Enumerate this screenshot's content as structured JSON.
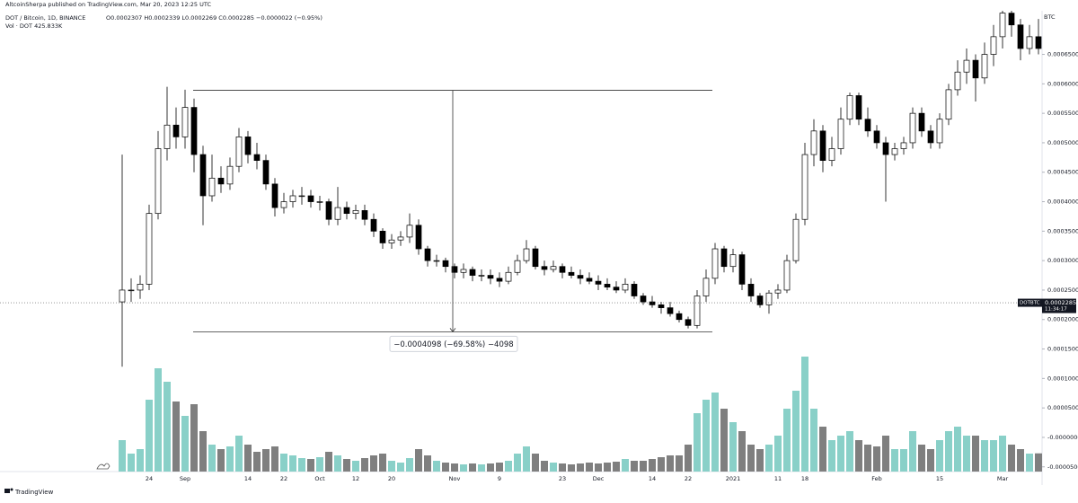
{
  "header": {
    "published": "AltcoinSherpa published on TradingView.com, Mar 20, 2023 12:25 UTC",
    "symbol": "DOT / Bitcoin, 1D, BINANCE",
    "ohlc": "O0.0002307 H0.0002339 L0.0002269 C0.0002285 −0.0000022 (−0.95%)",
    "volume": "Vol · DOT  425.833K"
  },
  "chart_data": {
    "type": "candlestick",
    "currency": "BTC",
    "categories": [
      null,
      null,
      null,
      "24",
      null,
      null,
      null,
      "Sep",
      null,
      null,
      null,
      null,
      null,
      null,
      "14",
      null,
      null,
      null,
      "22",
      null,
      null,
      null,
      "Oct",
      null,
      null,
      null,
      "12",
      null,
      null,
      null,
      "20",
      null,
      null,
      null,
      null,
      null,
      null,
      "Nov",
      null,
      null,
      null,
      null,
      "9",
      null,
      null,
      null,
      null,
      null,
      null,
      "23",
      null,
      null,
      null,
      "Dec",
      null,
      null,
      null,
      null,
      null,
      "14",
      null,
      null,
      null,
      "22",
      null,
      null,
      null,
      null,
      "2021",
      null,
      null,
      null,
      null,
      "11",
      null,
      null,
      "18",
      null,
      null,
      null,
      null,
      null,
      null,
      null,
      "Feb",
      null,
      null,
      null,
      null,
      null,
      null,
      "15",
      null,
      null,
      null,
      null,
      null,
      null,
      "Mar",
      null,
      null,
      null,
      null
    ],
    "open": [
      0.00023,
      0.00025,
      0.00025,
      0.00026,
      0.00038,
      0.00049,
      0.00053,
      0.00051,
      0.00056,
      0.00048,
      0.00041,
      0.00044,
      0.00043,
      0.00046,
      0.00051,
      0.00048,
      0.00047,
      0.00043,
      0.00039,
      0.0004,
      0.00041,
      0.00041,
      0.0004,
      0.0004,
      0.00037,
      0.00039,
      0.00038,
      0.000385,
      0.00037,
      0.00035,
      0.00033,
      0.000335,
      0.00034,
      0.00036,
      0.00032,
      0.0003,
      0.0003,
      0.00029,
      0.00028,
      0.000285,
      0.000275,
      0.000275,
      0.00027,
      0.000265,
      0.00028,
      0.0003,
      0.00032,
      0.00029,
      0.000285,
      0.00029,
      0.00028,
      0.000275,
      0.00027,
      0.000265,
      0.00026,
      0.000255,
      0.00025,
      0.00026,
      0.00024,
      0.00023,
      0.000225,
      0.00022,
      0.00021,
      0.0002,
      0.00019,
      0.00024,
      0.00027,
      0.00032,
      0.00029,
      0.00031,
      0.00026,
      0.00024,
      0.000225,
      0.000245,
      0.00025,
      0.0003,
      0.00037,
      0.00048,
      0.00052,
      0.00047,
      0.00049,
      0.00054,
      0.00058,
      0.00054,
      0.00052,
      0.0005,
      0.00048,
      0.00049,
      0.0005,
      0.00055,
      0.00052,
      0.0005,
      0.00054,
      0.00059,
      0.00062,
      0.00064,
      0.00061,
      0.00065,
      0.00068,
      0.00072,
      0.0007,
      0.00066,
      0.00068
    ],
    "high": [
      0.00048,
      0.00027,
      0.000275,
      0.000395,
      0.00052,
      0.000595,
      0.00056,
      0.00059,
      0.000575,
      0.000495,
      0.00048,
      0.00046,
      0.000475,
      0.000525,
      0.00052,
      0.0005,
      0.00048,
      0.00044,
      0.000415,
      0.00042,
      0.000425,
      0.00042,
      0.00041,
      0.000405,
      0.000425,
      0.0004,
      0.000395,
      0.000395,
      0.00038,
      0.000355,
      0.000345,
      0.00035,
      0.00038,
      0.00037,
      0.000325,
      0.00031,
      0.000305,
      0.000295,
      0.000295,
      0.00029,
      0.000285,
      0.000285,
      0.00028,
      0.00029,
      0.00031,
      0.000335,
      0.000325,
      0.0003,
      0.0003,
      0.000295,
      0.00029,
      0.000285,
      0.00028,
      0.000275,
      0.00027,
      0.000265,
      0.00027,
      0.000265,
      0.000245,
      0.00024,
      0.00023,
      0.00023,
      0.000215,
      0.000205,
      0.00025,
      0.000285,
      0.00033,
      0.000325,
      0.00032,
      0.000315,
      0.00027,
      0.000245,
      0.00025,
      0.00026,
      0.00031,
      0.00038,
      0.0005,
      0.00054,
      0.00053,
      0.00051,
      0.00056,
      0.000585,
      0.000585,
      0.00056,
      0.00053,
      0.00051,
      0.0005,
      0.00051,
      0.00056,
      0.00056,
      0.00053,
      0.00055,
      0.0006,
      0.00064,
      0.00066,
      0.00065,
      0.00067,
      0.0007,
      0.00073,
      0.00073,
      0.00071,
      0.0007,
      0.00071
    ],
    "low": [
      0.00012,
      0.00023,
      0.000235,
      0.00025,
      0.00037,
      0.00047,
      0.00049,
      0.00049,
      0.00045,
      0.00036,
      0.0004,
      0.000415,
      0.00042,
      0.00045,
      0.000465,
      0.000455,
      0.00042,
      0.000375,
      0.00038,
      0.00039,
      0.000395,
      0.00039,
      0.000385,
      0.00036,
      0.00036,
      0.00037,
      0.00037,
      0.00036,
      0.00034,
      0.00032,
      0.00032,
      0.000325,
      0.00033,
      0.00031,
      0.00029,
      0.00029,
      0.00028,
      0.00027,
      0.00027,
      0.000265,
      0.000265,
      0.00026,
      0.000255,
      0.00026,
      0.000275,
      0.000295,
      0.000285,
      0.000275,
      0.00028,
      0.00027,
      0.00027,
      0.00026,
      0.00026,
      0.00025,
      0.00025,
      0.000245,
      0.000245,
      0.000235,
      0.000225,
      0.00022,
      0.00021,
      0.000205,
      0.000195,
      0.000185,
      0.000185,
      0.00023,
      0.00026,
      0.00028,
      0.00028,
      0.00025,
      0.00023,
      0.00022,
      0.00021,
      0.000235,
      0.000245,
      0.000295,
      0.00036,
      0.00046,
      0.00045,
      0.00046,
      0.00048,
      0.00053,
      0.00053,
      0.00051,
      0.00049,
      0.0004,
      0.00047,
      0.00048,
      0.00049,
      0.00051,
      0.00049,
      0.00049,
      0.00053,
      0.00058,
      0.0006,
      0.00057,
      0.0006,
      0.00063,
      0.00066,
      0.00068,
      0.00064,
      0.00065,
      0.00065
    ],
    "close": [
      0.00025,
      0.00025,
      0.00026,
      0.00038,
      0.00049,
      0.00053,
      0.00051,
      0.00056,
      0.00048,
      0.00041,
      0.00044,
      0.00043,
      0.00046,
      0.00051,
      0.00048,
      0.00047,
      0.00043,
      0.00039,
      0.0004,
      0.00041,
      0.00041,
      0.0004,
      0.0004,
      0.00037,
      0.00039,
      0.00038,
      0.000385,
      0.00037,
      0.00035,
      0.00033,
      0.000335,
      0.00034,
      0.00036,
      0.00032,
      0.0003,
      0.0003,
      0.00029,
      0.00028,
      0.000285,
      0.000275,
      0.000275,
      0.00027,
      0.000265,
      0.00028,
      0.0003,
      0.00032,
      0.00029,
      0.000285,
      0.00029,
      0.00028,
      0.000275,
      0.00027,
      0.000265,
      0.00026,
      0.000255,
      0.00025,
      0.00026,
      0.00024,
      0.00023,
      0.000225,
      0.00022,
      0.00021,
      0.0002,
      0.00019,
      0.00024,
      0.00027,
      0.00032,
      0.00029,
      0.00031,
      0.00026,
      0.00024,
      0.000225,
      0.000245,
      0.00025,
      0.0003,
      0.00037,
      0.00048,
      0.00052,
      0.00047,
      0.00049,
      0.00054,
      0.00058,
      0.00054,
      0.00052,
      0.0005,
      0.00048,
      0.00049,
      0.0005,
      0.00055,
      0.00052,
      0.0005,
      0.00054,
      0.00059,
      0.00062,
      0.00064,
      0.00061,
      0.00065,
      0.00068,
      0.00072,
      0.0007,
      0.00066,
      0.00068,
      0.00066
    ],
    "volume": [
      735000,
      420000,
      525000,
      1680000,
      2415000,
      2100000,
      1638000,
      1302000,
      1575000,
      945000,
      630000,
      525000,
      588000,
      840000,
      630000,
      462000,
      525000,
      588000,
      420000,
      378000,
      315000,
      294000,
      336000,
      462000,
      378000,
      294000,
      252000,
      315000,
      378000,
      420000,
      252000,
      210000,
      315000,
      525000,
      378000,
      252000,
      210000,
      189000,
      168000,
      189000,
      168000,
      189000,
      210000,
      252000,
      420000,
      588000,
      420000,
      252000,
      210000,
      189000,
      168000,
      189000,
      210000,
      189000,
      210000,
      231000,
      294000,
      252000,
      252000,
      294000,
      336000,
      378000,
      378000,
      630000,
      1365000,
      1680000,
      1848000,
      1470000,
      1155000,
      945000,
      630000,
      525000,
      630000,
      840000,
      1470000,
      1890000,
      2688000,
      1470000,
      1050000,
      735000,
      840000,
      945000,
      735000,
      630000,
      588000,
      840000,
      525000,
      525000,
      945000,
      630000,
      525000,
      735000,
      945000,
      1050000,
      840000,
      840000,
      735000,
      735000,
      840000,
      630000,
      525000,
      420000,
      425833
    ],
    "ylim": [
      -5.8e-05,
      0.000724
    ],
    "yticks": [
      {
        "value": 0.00065,
        "label": "0.0006500"
      },
      {
        "value": 0.0006,
        "label": "0.0006000"
      },
      {
        "value": 0.00055,
        "label": "0.0005500"
      },
      {
        "value": 0.0005,
        "label": "0.0005000"
      },
      {
        "value": 0.00045,
        "label": "0.0004500"
      },
      {
        "value": 0.0004,
        "label": "0.0004000"
      },
      {
        "value": 0.00035,
        "label": "0.0003500"
      },
      {
        "value": 0.0003,
        "label": "0.0003000"
      },
      {
        "value": 0.00025,
        "label": "0.0002500"
      },
      {
        "value": 0.0002,
        "label": "0.0002000"
      },
      {
        "value": 0.00015,
        "label": "0.0001500"
      },
      {
        "value": 0.0001,
        "label": "0.0001000"
      },
      {
        "value": 5e-05,
        "label": "0.0000500"
      },
      {
        "value": 0,
        "label": "-0.0000000"
      },
      {
        "value": -5e-05,
        "label": "-0.0000500"
      }
    ],
    "volume_ylim": [
      0,
      10773000
    ],
    "up_color": "#ffffff",
    "down_color": "#000000",
    "volume_up_color": "#89d0c8",
    "volume_down_color": "#7f7f7f",
    "last_price": {
      "symbol": "DOTBTC",
      "value": 0.0002285,
      "label": "0.0002285",
      "countdown": "11:34:17"
    },
    "measure": {
      "from": 0.000589,
      "to": 0.0001792,
      "label": "−0.0004098 (−69.58%) −4098"
    }
  },
  "footer": {
    "brand": "TradingView"
  }
}
